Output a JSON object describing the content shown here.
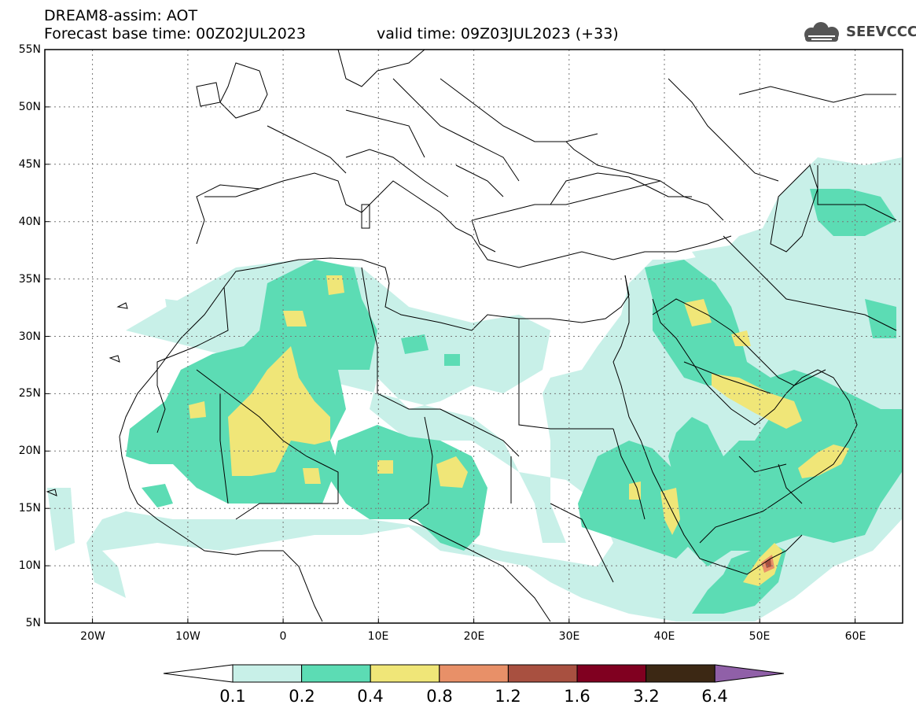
{
  "header": {
    "line1": "DREAM8-assim: AOT",
    "line2": "Forecast base time: 00Z02JUL2023",
    "valid": "valid time: 09Z03JUL2023 (+33)",
    "logo_text": "SEEVCCC"
  },
  "map": {
    "projection": "lat-lon",
    "lon_range": [
      -25,
      65
    ],
    "lat_range": [
      5,
      55
    ],
    "gridlines": true,
    "lat_labels": [
      "55N",
      "50N",
      "45N",
      "40N",
      "35N",
      "30N",
      "25N",
      "20N",
      "15N",
      "10N",
      "5N"
    ],
    "lon_labels": [
      "20W",
      "10W",
      "0",
      "10E",
      "20E",
      "30E",
      "40E",
      "50E",
      "60E"
    ],
    "field": "AOT"
  },
  "colorbar": {
    "levels": [
      "0.1",
      "0.2",
      "0.4",
      "0.8",
      "1.2",
      "1.6",
      "3.2",
      "6.4"
    ],
    "colors": [
      "#ffffff",
      "#c8f0e8",
      "#5cdcb4",
      "#f0e678",
      "#e89068",
      "#a85040",
      "#800020",
      "#3c2814",
      "#9060a8"
    ]
  }
}
